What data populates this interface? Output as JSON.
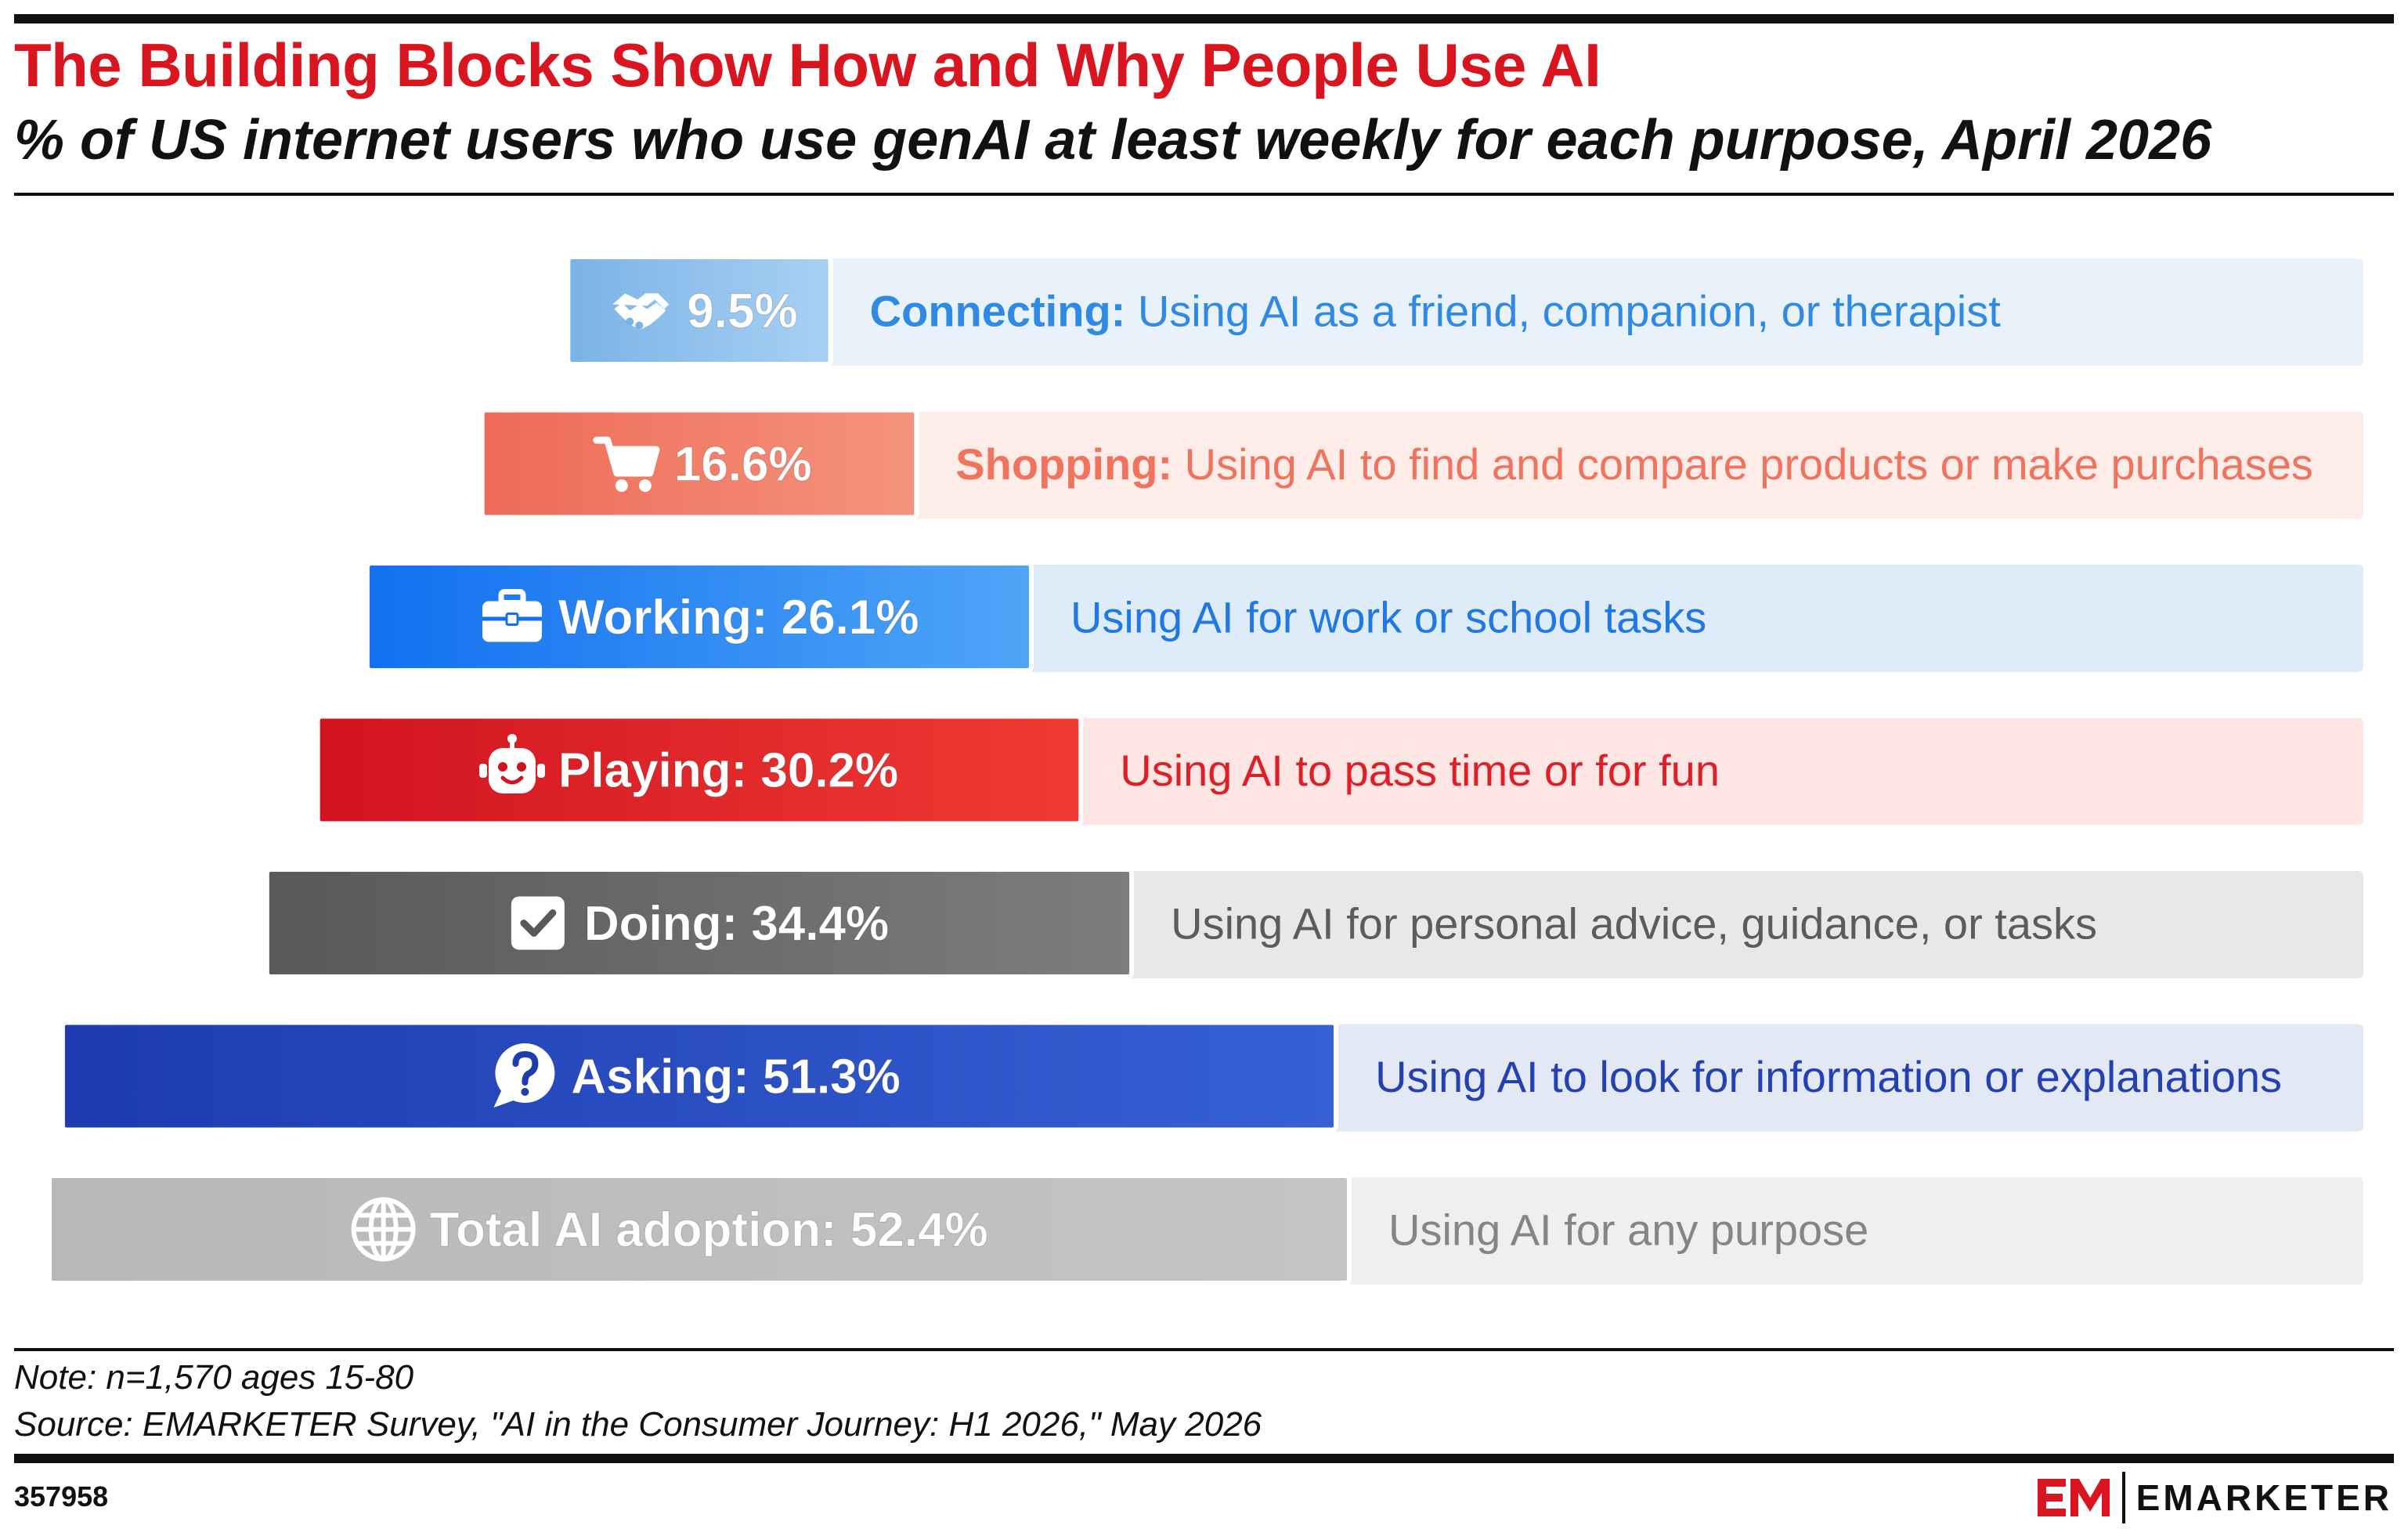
{
  "header": {
    "title": "The Building Blocks Show How and Why People Use AI",
    "subtitle": "% of US internet users who use genAI at least weekly for each purpose, April 2026"
  },
  "chart_data": {
    "type": "bar",
    "orientation": "horizontal",
    "bars": [
      {
        "label": "",
        "value": 9.5,
        "value_text": "9.5%",
        "category": "Connecting:",
        "description": "Using AI as a friend, companion, or therapist",
        "icon": "handshake-icon",
        "color_start": "#7ab3e6",
        "color_end": "#a9d0f3",
        "text_color": "#2f8ae6",
        "panel_color": "#e9f2fb"
      },
      {
        "label": "",
        "value": 16.6,
        "value_text": "16.6%",
        "category": "Shopping:",
        "description": "Using AI to find and compare products or make purchases",
        "icon": "shopping-cart-icon",
        "color_start": "#ee6a56",
        "color_end": "#f4947e",
        "text_color": "#f0735d",
        "panel_color": "#fdece8"
      },
      {
        "label": "Working:",
        "value": 26.1,
        "value_text": "26.1%",
        "category": "",
        "description": "Using AI for work or school tasks",
        "icon": "briefcase-icon",
        "color_start": "#1270f0",
        "color_end": "#4ea6f7",
        "text_color": "#1f78e5",
        "panel_color": "#deecfa"
      },
      {
        "label": "Playing:",
        "value": 30.2,
        "value_text": "30.2%",
        "category": "",
        "description": "Using AI to pass time or for fun",
        "icon": "robot-icon",
        "color_start": "#d11320",
        "color_end": "#ef3b33",
        "text_color": "#e01e26",
        "panel_color": "#fde6e4"
      },
      {
        "label": "Doing:",
        "value": 34.4,
        "value_text": "34.4%",
        "category": "",
        "description": "Using AI for personal advice, guidance, or tasks",
        "icon": "checkbox-icon",
        "color_start": "#595959",
        "color_end": "#7d7d7d",
        "text_color": "#5c5c5c",
        "panel_color": "#e8e8e8"
      },
      {
        "label": "Asking:",
        "value": 51.3,
        "value_text": "51.3%",
        "category": "",
        "description": "Using AI to look for information or explanations",
        "icon": "question-bubble-icon",
        "color_start": "#1e3bb0",
        "color_end": "#3561d4",
        "text_color": "#2440b3",
        "panel_color": "#e3e8f5"
      },
      {
        "label": "Total AI adoption:",
        "value": 52.4,
        "value_text": "52.4%",
        "category": "",
        "description": "Using AI for any purpose",
        "icon": "globe-icon",
        "color_start": "#b8b8b8",
        "color_end": "#c4c4c4",
        "text_color": "#858585",
        "panel_color": "#efefef"
      }
    ]
  },
  "footer": {
    "note": "Note: n=1,570 ages 15-80",
    "source": "Source: EMARKETER Survey, \"AI in the Consumer Journey: H1 2026,\" May 2026",
    "chart_id": "357958",
    "brand": "EMARKETER",
    "brand_logo": "em-logo",
    "brand_color": "#d9151f"
  }
}
